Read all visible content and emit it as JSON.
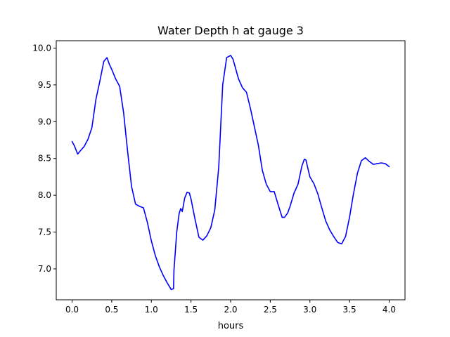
{
  "chart_data": {
    "type": "line",
    "title": "Water Depth h at gauge 3",
    "xlabel": "hours",
    "ylabel": "",
    "xlim": [
      -0.2,
      4.2
    ],
    "ylim": [
      6.58,
      10.1
    ],
    "xticks": [
      0.0,
      0.5,
      1.0,
      1.5,
      2.0,
      2.5,
      3.0,
      3.5,
      4.0
    ],
    "xtick_labels": [
      "0.0",
      "0.5",
      "1.0",
      "1.5",
      "2.0",
      "2.5",
      "3.0",
      "3.5",
      "4.0"
    ],
    "yticks": [
      7.0,
      7.5,
      8.0,
      8.5,
      9.0,
      9.5,
      10.0
    ],
    "ytick_labels": [
      "7.0",
      "7.5",
      "8.0",
      "8.5",
      "9.0",
      "9.5",
      "10.0"
    ],
    "grid": false,
    "series": [
      {
        "color": "#0000ff",
        "x": [
          0.0,
          0.03,
          0.07,
          0.1,
          0.15,
          0.2,
          0.25,
          0.3,
          0.35,
          0.4,
          0.44,
          0.47,
          0.5,
          0.55,
          0.6,
          0.65,
          0.7,
          0.75,
          0.8,
          0.85,
          0.9,
          0.95,
          1.0,
          1.05,
          1.1,
          1.15,
          1.2,
          1.25,
          1.28,
          1.285,
          1.3,
          1.32,
          1.35,
          1.37,
          1.39,
          1.42,
          1.45,
          1.48,
          1.5,
          1.55,
          1.6,
          1.65,
          1.7,
          1.75,
          1.8,
          1.85,
          1.9,
          1.95,
          2.0,
          2.03,
          2.1,
          2.15,
          2.2,
          2.25,
          2.3,
          2.35,
          2.4,
          2.45,
          2.5,
          2.55,
          2.6,
          2.65,
          2.68,
          2.72,
          2.75,
          2.8,
          2.85,
          2.9,
          2.93,
          2.95,
          3.0,
          3.05,
          3.1,
          3.15,
          3.2,
          3.25,
          3.3,
          3.35,
          3.4,
          3.45,
          3.5,
          3.55,
          3.6,
          3.65,
          3.7,
          3.75,
          3.8,
          3.85,
          3.9,
          3.95,
          4.0
        ],
        "y": [
          8.73,
          8.67,
          8.56,
          8.6,
          8.66,
          8.76,
          8.92,
          9.3,
          9.55,
          9.82,
          9.87,
          9.78,
          9.71,
          9.58,
          9.48,
          9.12,
          8.6,
          8.12,
          7.88,
          7.85,
          7.83,
          7.63,
          7.38,
          7.18,
          7.03,
          6.91,
          6.81,
          6.72,
          6.73,
          6.98,
          7.2,
          7.5,
          7.75,
          7.82,
          7.78,
          7.96,
          8.04,
          8.03,
          7.95,
          7.68,
          7.43,
          7.39,
          7.45,
          7.56,
          7.8,
          8.38,
          9.5,
          9.87,
          9.9,
          9.85,
          9.58,
          9.46,
          9.4,
          9.18,
          8.93,
          8.68,
          8.34,
          8.15,
          8.05,
          8.05,
          7.87,
          7.7,
          7.7,
          7.76,
          7.85,
          8.03,
          8.15,
          8.4,
          8.49,
          8.48,
          8.25,
          8.16,
          8.02,
          7.83,
          7.65,
          7.53,
          7.44,
          7.36,
          7.34,
          7.44,
          7.7,
          8.02,
          8.3,
          8.47,
          8.51,
          8.46,
          8.42,
          8.43,
          8.44,
          8.43,
          8.39
        ]
      }
    ]
  }
}
